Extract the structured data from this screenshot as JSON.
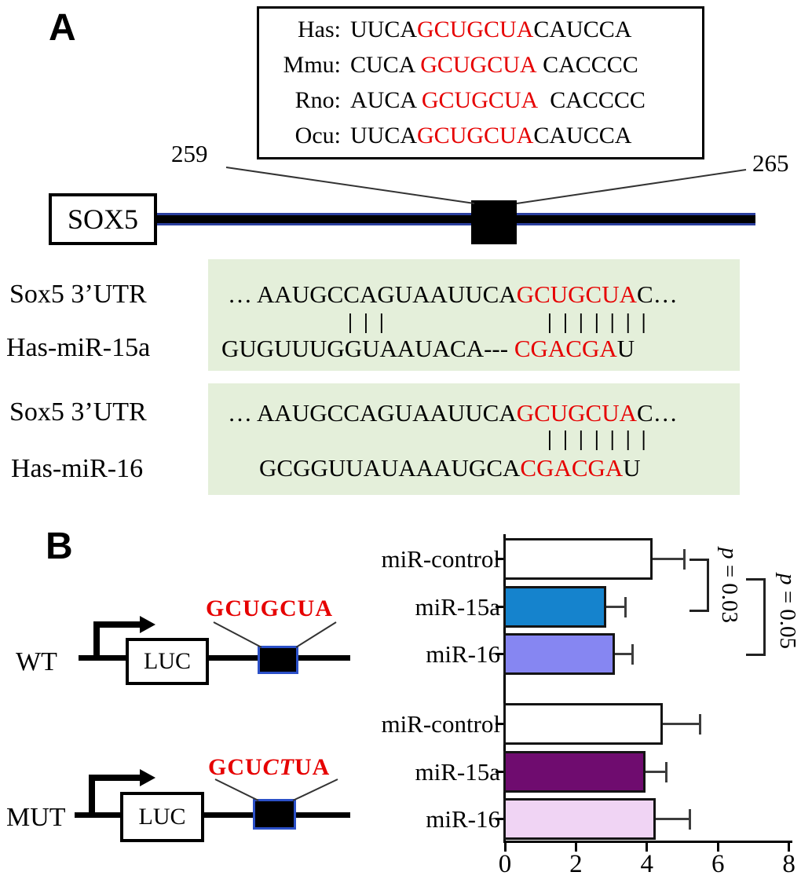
{
  "colors": {
    "seed_red": "#e60000",
    "alignment_bg_green": "#e4efda",
    "site_border_blue": "#2b50c8",
    "utr_line_navy": "#2b3f9e",
    "bar_wt_15a_blue": "#1583cd",
    "bar_wt_16_periwinkle": "#8686f2",
    "bar_mut_15a_purple": "#6f0c6f",
    "bar_mut_16_pink": "#f0d4f4",
    "bar_control_white": "#ffffff"
  },
  "panel_a": {
    "label": "A",
    "species_alignment": {
      "rows": [
        {
          "name": "Has:",
          "pre": "UUCA",
          "seed": "GCUGCUA",
          "post": "CAUCCA"
        },
        {
          "name": "Mmu:",
          "pre": "CUCA ",
          "seed": "GCUGCUA",
          "post": " CACCCC"
        },
        {
          "name": "Rno:",
          "pre": "AUCA ",
          "seed": "GCUGCUA",
          "post": "  CACCCC"
        },
        {
          "name": "Ocu:",
          "pre": "UUCA",
          "seed": "GCUGCUA",
          "post": "CAUCCA"
        }
      ]
    },
    "position_left": "259",
    "position_right": "265",
    "gene_label": "SOX5",
    "duplex_mir15a": {
      "target_label": "Sox5 3’UTR",
      "target_pre": "… AAUGCCAGUAAUUCA",
      "target_seed": "GCUGCUA",
      "target_post": "C…",
      "pairs_left": "|||",
      "pairs_seed": "|||||||",
      "mirna_label": "Has-miR-15a",
      "mirna_pre": "GUGUUUGGUAAUACA--- ",
      "mirna_seed": "CGACGA",
      "mirna_post": "U"
    },
    "duplex_mir16": {
      "target_label": "Sox5 3’UTR",
      "target_pre": "… AAUGCCAGUAAUUCA",
      "target_seed": "GCUGCUA",
      "target_post": "C…",
      "pairs_seed": "|||||||",
      "mirna_label": "Has-miR-16",
      "mirna_pre": "GCGGUUAUAAAUGCA",
      "mirna_seed": "CGACGA",
      "mirna_post": "U"
    }
  },
  "panel_b": {
    "label": "B",
    "wt": {
      "name": "WT",
      "gene": "LUC",
      "site": "GCUGCUA"
    },
    "mut": {
      "name": "MUT",
      "gene": "LUC",
      "site_pre": "GCU",
      "site_mut": "CT",
      "site_post": "UA"
    }
  },
  "chart_data": {
    "type": "bar",
    "orientation": "horizontal",
    "xlim": [
      0,
      8
    ],
    "xticks": [
      "0",
      "2",
      "4",
      "6",
      "8"
    ],
    "grid": false,
    "legend": "none",
    "groups": [
      {
        "construct": "WT",
        "bars": [
          {
            "label": "miR-control",
            "value": 4.2,
            "error_high": 5.1,
            "color": "#ffffff"
          },
          {
            "label": "miR-15a",
            "value": 2.9,
            "error_high": 3.45,
            "color": "#1583cd"
          },
          {
            "label": "miR-16",
            "value": 3.15,
            "error_high": 3.65,
            "color": "#8686f2"
          }
        ]
      },
      {
        "construct": "MUT",
        "bars": [
          {
            "label": "miR-control",
            "value": 4.5,
            "error_high": 5.55,
            "color": "#ffffff"
          },
          {
            "label": "miR-15a",
            "value": 4.0,
            "error_high": 4.6,
            "color": "#6f0c6f"
          },
          {
            "label": "miR-16",
            "value": 4.3,
            "error_high": 5.25,
            "color": "#f0d4f4"
          }
        ]
      }
    ],
    "annotations": [
      {
        "var": "p",
        "rest": " = 0.03",
        "compares": [
          "WT miR-control",
          "WT miR-15a"
        ]
      },
      {
        "var": "p",
        "rest": " = 0.05",
        "compares": [
          "WT miR-control",
          "WT miR-16"
        ]
      }
    ]
  }
}
